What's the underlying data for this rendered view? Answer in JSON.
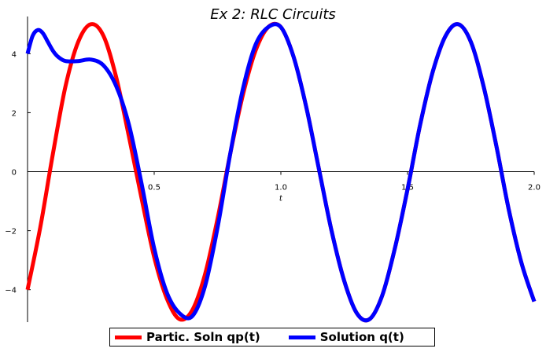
{
  "chart_data": {
    "type": "line",
    "title": "Ex 2: RLC Circuits",
    "xlabel": "t",
    "ylabel": "",
    "xlim": [
      0,
      2.0
    ],
    "ylim": [
      -5.1,
      5.1
    ],
    "x_ticks": [
      0.5,
      1.0,
      1.5,
      2.0
    ],
    "x_tick_labels": [
      "0.5",
      "1.0",
      "1.5",
      "2.0"
    ],
    "y_ticks": [
      -4,
      -2,
      0,
      2,
      4
    ],
    "y_tick_labels": [
      "−4",
      "−2",
      "0",
      "2",
      "4"
    ],
    "grid": false,
    "legend_position": "bottom",
    "series": [
      {
        "name": "Partic. Soln qp(t)",
        "color": "#ff0000",
        "x": [
          0,
          0.05,
          0.1,
          0.15,
          0.2,
          0.25,
          0.3,
          0.35,
          0.4,
          0.45,
          0.5,
          0.55,
          0.6,
          0.65,
          0.7,
          0.75,
          0.8,
          0.85,
          0.9,
          0.95,
          1.0,
          1.05,
          1.1,
          1.15,
          1.2,
          1.25,
          1.3,
          1.35,
          1.4,
          1.45,
          1.5,
          1.55,
          1.6,
          1.65,
          1.7,
          1.75,
          1.8,
          1.85,
          1.9,
          1.95,
          2.0
        ],
        "y": [
          -4.0,
          -1.9,
          0.6,
          2.9,
          4.4,
          5.0,
          4.6,
          3.2,
          1.2,
          -0.9,
          -2.9,
          -4.3,
          -5.0,
          -4.7,
          -3.5,
          -1.6,
          0.6,
          2.6,
          4.1,
          4.9,
          4.9,
          3.9,
          2.2,
          0.1,
          -2.0,
          -3.7,
          -4.8,
          -5.0,
          -4.2,
          -2.6,
          -0.6,
          1.6,
          3.4,
          4.6,
          5.0,
          4.4,
          2.9,
          0.9,
          -1.3,
          -3.1,
          -4.4
        ]
      },
      {
        "name": "Solution q(t)",
        "color": "#0000ff",
        "x": [
          0,
          0.02,
          0.04,
          0.06,
          0.08,
          0.1,
          0.12,
          0.15,
          0.2,
          0.25,
          0.3,
          0.35,
          0.4,
          0.45,
          0.5,
          0.55,
          0.6,
          0.65,
          0.7,
          0.75,
          0.8,
          0.85,
          0.9,
          0.95,
          1.0,
          1.05,
          1.1,
          1.15,
          1.2,
          1.25,
          1.3,
          1.35,
          1.4,
          1.45,
          1.5,
          1.55,
          1.6,
          1.65,
          1.7,
          1.75,
          1.8,
          1.85,
          1.9,
          1.95,
          2.0
        ],
        "y": [
          4.0,
          4.6,
          4.8,
          4.7,
          4.4,
          4.1,
          3.9,
          3.75,
          3.75,
          3.8,
          3.6,
          2.9,
          1.6,
          -0.4,
          -2.6,
          -4.1,
          -4.8,
          -4.9,
          -3.9,
          -1.9,
          0.6,
          2.8,
          4.3,
          4.9,
          4.9,
          3.9,
          2.2,
          0.1,
          -2.0,
          -3.7,
          -4.8,
          -5.0,
          -4.2,
          -2.6,
          -0.6,
          1.6,
          3.4,
          4.6,
          5.0,
          4.4,
          2.9,
          0.9,
          -1.3,
          -3.1,
          -4.4
        ]
      }
    ]
  }
}
